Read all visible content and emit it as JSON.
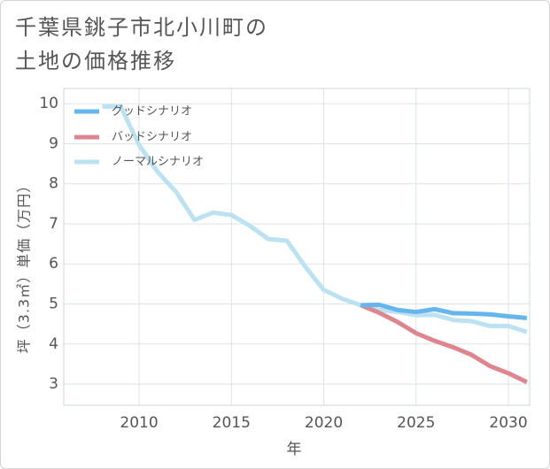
{
  "chart_data": {
    "type": "line",
    "title": [
      "千葉県銚子市北小川町の",
      "土地の価格推移"
    ],
    "xlabel": "年",
    "ylabel": "坪（3.3㎡）単価（万円）",
    "xlim": [
      2005.92,
      2031.15
    ],
    "ylim": [
      2.47,
      10.38
    ],
    "xticks": [
      2010,
      2015,
      2020,
      2025,
      2030
    ],
    "yticks": [
      3,
      4,
      5,
      6,
      7,
      8,
      9,
      10
    ],
    "grid": true,
    "legend_position": "top-left",
    "series": [
      {
        "name": "グッドシナリオ",
        "color": "#66b5ec",
        "x": [
          2022,
          2023,
          2024,
          2025,
          2026,
          2027,
          2028,
          2029,
          2030,
          2031
        ],
        "y": [
          4.97,
          4.98,
          4.85,
          4.8,
          4.87,
          4.77,
          4.76,
          4.74,
          4.69,
          4.65
        ]
      },
      {
        "name": "バッドシナリオ",
        "color": "#de868f",
        "x": [
          2022,
          2023,
          2024,
          2025,
          2026,
          2027,
          2028,
          2029,
          2030,
          2031
        ],
        "y": [
          4.97,
          4.78,
          4.55,
          4.27,
          4.08,
          3.92,
          3.73,
          3.45,
          3.27,
          3.05
        ]
      },
      {
        "name": "ノーマルシナリオ",
        "color": "#bce1f0",
        "x": [
          2008,
          2009,
          2010,
          2011,
          2012,
          2013,
          2014,
          2015,
          2016,
          2017,
          2018,
          2019,
          2020,
          2021,
          2022,
          2023,
          2024,
          2025,
          2026,
          2027,
          2028,
          2029,
          2030,
          2031
        ],
        "y": [
          9.93,
          9.93,
          8.97,
          8.3,
          7.8,
          7.1,
          7.28,
          7.22,
          6.95,
          6.62,
          6.58,
          5.93,
          5.35,
          5.13,
          4.97,
          4.85,
          4.8,
          4.72,
          4.73,
          4.6,
          4.57,
          4.45,
          4.45,
          4.3
        ]
      }
    ]
  },
  "colors": {
    "text": "#555555",
    "grid": "#dde3ea",
    "background": "#ffffff"
  }
}
